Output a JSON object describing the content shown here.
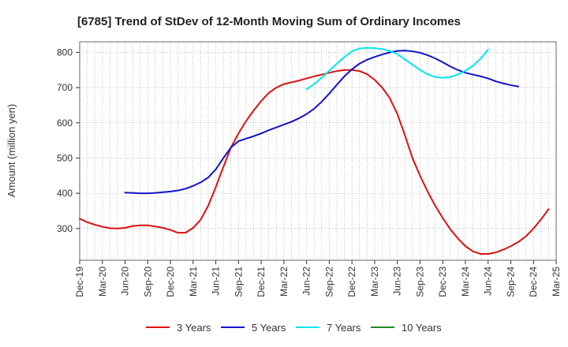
{
  "chart_data": {
    "type": "line",
    "title": "[6785]  Trend of StDev of 12-Month Moving Sum of Ordinary Incomes",
    "xlabel": "",
    "ylabel": "Amount (million yen)",
    "ylim": [
      210,
      830
    ],
    "yticks": [
      300,
      400,
      500,
      600,
      700,
      800
    ],
    "grid": true,
    "legend_position": "bottom",
    "x_ticks": [
      "Dec-19",
      "Mar-20",
      "Jun-20",
      "Sep-20",
      "Dec-20",
      "Mar-21",
      "Jun-21",
      "Sep-21",
      "Dec-21",
      "Mar-22",
      "Jun-22",
      "Sep-22",
      "Dec-22",
      "Mar-23",
      "Jun-23",
      "Sep-23",
      "Dec-23",
      "Mar-24",
      "Jun-24",
      "Sep-24",
      "Dec-24",
      "Mar-25"
    ],
    "series": [
      {
        "name": "3 Years",
        "color": "#dd1111",
        "start": "Dec-19",
        "values": [
          328,
          318,
          311,
          305,
          301,
          300,
          302,
          307,
          309,
          309,
          306,
          302,
          296,
          288,
          288,
          302,
          325,
          365,
          418,
          475,
          530,
          570,
          605,
          635,
          662,
          685,
          700,
          710,
          715,
          720,
          726,
          732,
          737,
          742,
          747,
          750,
          750,
          747,
          738,
          722,
          700,
          670,
          625,
          565,
          500,
          450,
          405,
          365,
          330,
          298,
          272,
          250,
          235,
          228,
          228,
          232,
          240,
          250,
          262,
          278,
          300,
          326,
          355
        ],
        "legend_label": "3 Years"
      },
      {
        "name": "5 Years",
        "color": "#1111cc",
        "start": "Jun-20",
        "values": [
          402,
          401,
          400,
          400,
          401,
          403,
          405,
          408,
          413,
          421,
          431,
          445,
          468,
          500,
          530,
          548,
          555,
          562,
          570,
          579,
          587,
          595,
          603,
          613,
          625,
          640,
          660,
          683,
          708,
          732,
          752,
          768,
          779,
          787,
          794,
          800,
          804,
          805,
          803,
          799,
          792,
          783,
          772,
          760,
          750,
          742,
          737,
          732,
          726,
          718,
          712,
          707,
          703
        ],
        "legend_label": "5 Years"
      },
      {
        "name": "7 Years",
        "color": "#00e6ee",
        "start": "Jun-22",
        "values": [
          695,
          710,
          728,
          748,
          768,
          787,
          803,
          811,
          813,
          812,
          809,
          804,
          795,
          780,
          765,
          750,
          738,
          730,
          728,
          730,
          737,
          748,
          762,
          782,
          808
        ],
        "legend_label": "7 Years"
      },
      {
        "name": "10 Years",
        "color": "#228822",
        "start": "Dec-19",
        "values": [],
        "legend_label": "10 Years"
      }
    ]
  }
}
